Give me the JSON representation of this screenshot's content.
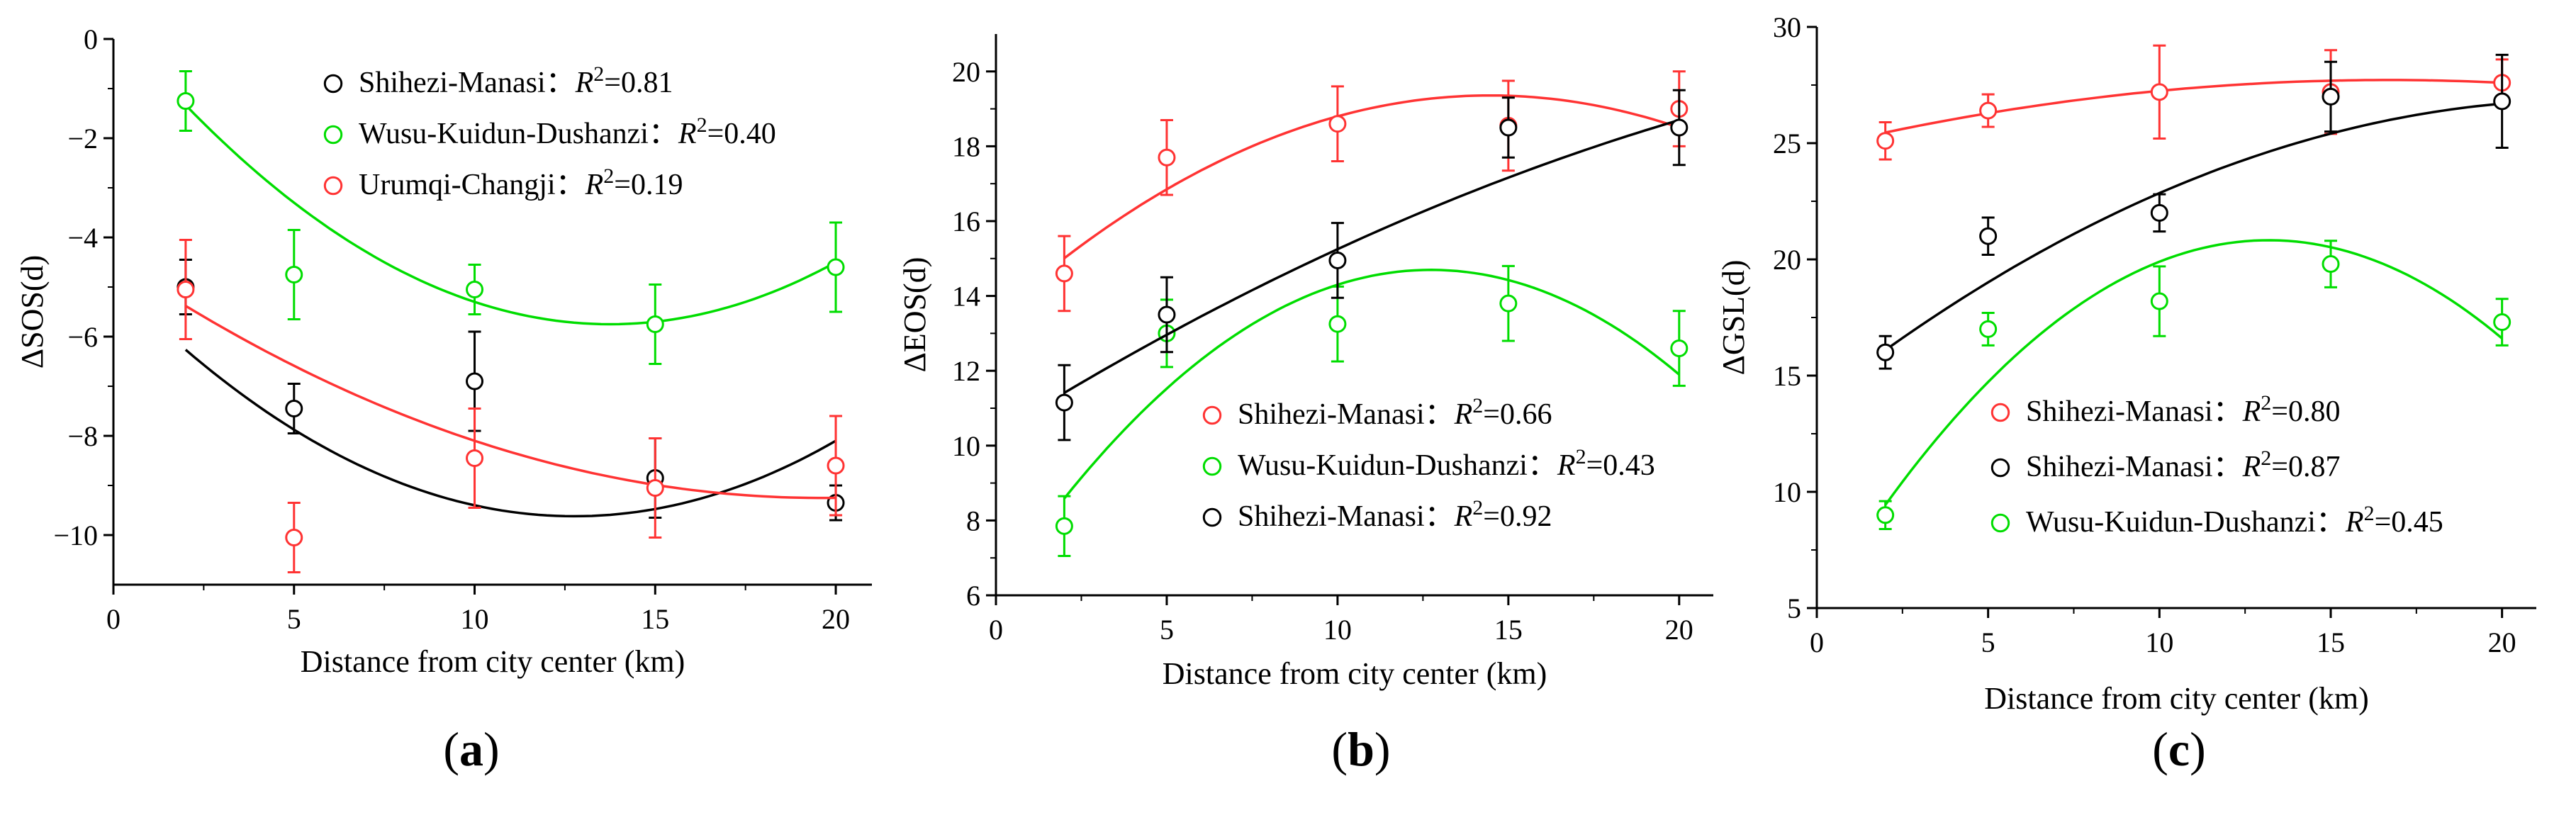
{
  "chart_data": [
    {
      "type": "scatter",
      "panel_label": "a",
      "xlabel": "Distance from city center (km)",
      "ylabel": "ΔSOS(d)",
      "xlim": [
        0,
        21
      ],
      "ylim": [
        -11,
        0
      ],
      "xticks": [
        0,
        5,
        10,
        15,
        20
      ],
      "yticks": [
        -10,
        -8,
        -6,
        -4,
        -2,
        0
      ],
      "ytick_labels": [
        "−10",
        "−8",
        "−6",
        "−4",
        "−2",
        "0"
      ],
      "legend_position": "top-right",
      "series": [
        {
          "name": "Shihezi-Manasi",
          "r2": "0.81",
          "color": "#000000",
          "x": [
            2,
            5,
            10,
            15,
            20
          ],
          "y": [
            -5.0,
            -7.45,
            -6.9,
            -8.85,
            -9.35
          ],
          "err": [
            0.55,
            0.5,
            1.0,
            0.8,
            0.35
          ],
          "fit_coef": [
            -4.9,
            -0.74,
            0.029
          ]
        },
        {
          "name": "Wusu-Kuidun-Dushanzi",
          "r2": "0.40",
          "color": "#00dd00",
          "x": [
            2,
            5,
            10,
            15,
            20
          ],
          "y": [
            -1.25,
            -4.75,
            -5.05,
            -5.75,
            -4.6
          ],
          "err": [
            0.6,
            0.9,
            0.5,
            0.8,
            0.9
          ],
          "fit_coef": [
            0.3,
            -0.88,
            0.032
          ]
        },
        {
          "name": "Urumqi-Changji",
          "r2": "0.19",
          "color": "#ff3333",
          "x": [
            2,
            5,
            10,
            15,
            20
          ],
          "y": [
            -5.05,
            -10.05,
            -8.45,
            -9.05,
            -8.6
          ],
          "err": [
            1.0,
            0.7,
            1.0,
            1.0,
            1.0
          ],
          "fit_coef": [
            -4.45,
            -0.49,
            0.0125
          ]
        }
      ]
    },
    {
      "type": "scatter",
      "panel_label": "b",
      "xlabel": "Distance from city center (km)",
      "ylabel": "ΔEOS(d)",
      "xlim": [
        0,
        21
      ],
      "ylim": [
        6,
        21
      ],
      "xticks": [
        0,
        5,
        10,
        15,
        20
      ],
      "yticks": [
        6,
        8,
        10,
        12,
        14,
        16,
        18,
        20
      ],
      "ytick_labels": [
        "6",
        "8",
        "10",
        "12",
        "14",
        "16",
        "18",
        "20"
      ],
      "legend_position": "bottom-right",
      "series": [
        {
          "name": "Shihezi-Manasi",
          "r2": "0.66",
          "color": "#ff3333",
          "x": [
            2,
            5,
            10,
            15,
            20
          ],
          "y": [
            14.6,
            17.7,
            18.6,
            18.55,
            19.0
          ],
          "err": [
            1.0,
            1.0,
            1.0,
            1.2,
            1.0
          ],
          "fit_coef": [
            13.5,
            0.81,
            -0.028
          ]
        },
        {
          "name": "Wusu-Kuidun-Dushanzi",
          "r2": "0.43",
          "color": "#00dd00",
          "x": [
            2,
            5,
            10,
            15,
            20
          ],
          "y": [
            7.85,
            13.0,
            13.25,
            13.8,
            12.6
          ],
          "err": [
            0.8,
            0.9,
            1.0,
            1.0,
            1.0
          ],
          "fit_coef": [
            6.1,
            1.35,
            -0.053
          ]
        },
        {
          "name": "Shihezi-Manasi",
          "r2": "0.92",
          "color": "#000000",
          "x": [
            2,
            5,
            10,
            15,
            20
          ],
          "y": [
            11.15,
            13.5,
            14.95,
            18.5,
            18.5
          ],
          "err": [
            1.0,
            1.0,
            1.0,
            0.8,
            1.0
          ],
          "fit_coef": [
            10.3,
            0.57,
            -0.0075
          ]
        }
      ]
    },
    {
      "type": "scatter",
      "panel_label": "c",
      "xlabel": "Distance from city center (km)",
      "ylabel": "ΔGSL(d)",
      "xlim": [
        0,
        21
      ],
      "ylim": [
        5,
        30
      ],
      "xticks": [
        0,
        5,
        10,
        15,
        20
      ],
      "yticks": [
        5,
        10,
        15,
        20,
        25,
        30
      ],
      "ytick_labels": [
        "5",
        "10",
        "15",
        "20",
        "25",
        "30"
      ],
      "legend_position": "bottom-right",
      "series": [
        {
          "name": "Shihezi-Manasi",
          "r2": "0.80",
          "color": "#ff3333",
          "x": [
            2,
            5,
            10,
            15,
            20
          ],
          "y": [
            25.1,
            26.4,
            27.2,
            27.2,
            27.6
          ],
          "err": [
            0.8,
            0.7,
            2.0,
            1.8,
            1.0
          ],
          "fit_coef": [
            24.8,
            0.35,
            -0.0105
          ]
        },
        {
          "name": "Shihezi-Manasi",
          "r2": "0.87",
          "color": "#000000",
          "x": [
            2,
            5,
            10,
            15,
            20
          ],
          "y": [
            16.0,
            21.0,
            22.0,
            27.0,
            26.8
          ],
          "err": [
            0.7,
            0.8,
            0.8,
            1.5,
            2.0
          ],
          "fit_coef": [
            13.9,
            1.15,
            -0.0255
          ]
        },
        {
          "name": "Wusu-Kuidun-Dushanzi",
          "r2": "0.45",
          "color": "#00dd00",
          "x": [
            2,
            5,
            10,
            15,
            20
          ],
          "y": [
            9.0,
            17.0,
            18.2,
            19.8,
            17.3
          ],
          "err": [
            0.6,
            0.7,
            1.5,
            1.0,
            1.0
          ],
          "fit_coef": [
            5.0,
            2.4,
            -0.091
          ]
        }
      ]
    }
  ]
}
